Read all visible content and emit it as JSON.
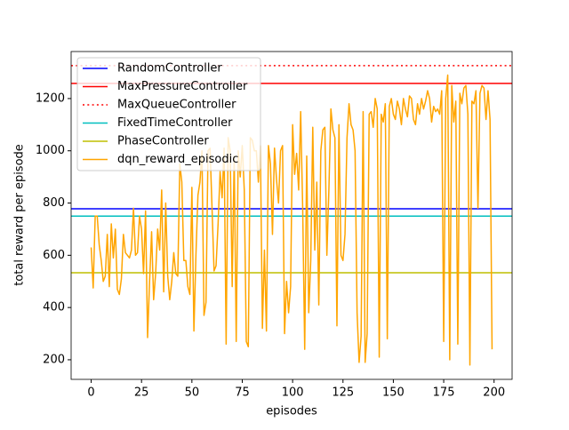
{
  "chart_data": {
    "type": "line",
    "xlabel": "episodes",
    "ylabel": "total reward per episode",
    "xlim": [
      -9.95,
      208.95
    ],
    "ylim": [
      125,
      1380
    ],
    "xticks": [
      0,
      25,
      50,
      75,
      100,
      125,
      150,
      175,
      200
    ],
    "yticks": [
      200,
      400,
      600,
      800,
      1000,
      1200
    ],
    "legend": "upper left",
    "hlines": [
      {
        "name": "RandomController",
        "color": "#0000ff",
        "style": "solid",
        "value": 778
      },
      {
        "name": "MaxPressureController",
        "color": "#ff0000",
        "style": "solid",
        "value": 1258
      },
      {
        "name": "MaxQueueController",
        "color": "#ff0000",
        "style": "dotted",
        "value": 1326
      },
      {
        "name": "FixedTimeController",
        "color": "#00bfbf",
        "style": "solid",
        "value": 750
      },
      {
        "name": "PhaseController",
        "color": "#bfbf00",
        "style": "solid",
        "value": 533
      }
    ],
    "x": [
      0,
      1,
      2,
      3,
      4,
      5,
      6,
      7,
      8,
      9,
      10,
      11,
      12,
      13,
      14,
      15,
      16,
      17,
      18,
      19,
      20,
      21,
      22,
      23,
      24,
      25,
      26,
      27,
      28,
      29,
      30,
      31,
      32,
      33,
      34,
      35,
      36,
      37,
      38,
      39,
      40,
      41,
      42,
      43,
      44,
      45,
      46,
      47,
      48,
      49,
      50,
      51,
      52,
      53,
      54,
      55,
      56,
      57,
      58,
      59,
      60,
      61,
      62,
      63,
      64,
      65,
      66,
      67,
      68,
      69,
      70,
      71,
      72,
      73,
      74,
      75,
      76,
      77,
      78,
      79,
      80,
      81,
      82,
      83,
      84,
      85,
      86,
      87,
      88,
      89,
      90,
      91,
      92,
      93,
      94,
      95,
      96,
      97,
      98,
      99,
      100,
      101,
      102,
      103,
      104,
      105,
      106,
      107,
      108,
      109,
      110,
      111,
      112,
      113,
      114,
      115,
      116,
      117,
      118,
      119,
      120,
      121,
      122,
      123,
      124,
      125,
      126,
      127,
      128,
      129,
      130,
      131,
      132,
      133,
      134,
      135,
      136,
      137,
      138,
      139,
      140,
      141,
      142,
      143,
      144,
      145,
      146,
      147,
      148,
      149,
      150,
      151,
      152,
      153,
      154,
      155,
      156,
      157,
      158,
      159,
      160,
      161,
      162,
      163,
      164,
      165,
      166,
      167,
      168,
      169,
      170,
      171,
      172,
      173,
      174,
      175,
      176,
      177,
      178,
      179,
      180,
      181,
      182,
      183,
      184,
      185,
      186,
      187,
      188,
      189,
      190,
      191,
      192,
      193,
      194,
      195,
      196,
      197,
      198,
      199
    ],
    "series": [
      {
        "name": "dqn_reward_episodic",
        "color": "#ffa500",
        "values": [
          630,
          475,
          750,
          750,
          640,
          580,
          500,
          520,
          680,
          480,
          720,
          590,
          700,
          470,
          450,
          510,
          680,
          610,
          600,
          590,
          620,
          780,
          600,
          610,
          750,
          700,
          530,
          770,
          285,
          500,
          690,
          430,
          530,
          700,
          620,
          850,
          460,
          800,
          520,
          430,
          500,
          610,
          530,
          520,
          950,
          880,
          580,
          580,
          480,
          450,
          860,
          310,
          600,
          830,
          880,
          1000,
          370,
          420,
          1000,
          1010,
          780,
          540,
          560,
          720,
          920,
          820,
          1010,
          260,
          1050,
          1000,
          480,
          980,
          270,
          1000,
          900,
          1020,
          850,
          270,
          250,
          1050,
          1040,
          1000,
          1000,
          880,
          1020,
          320,
          620,
          310,
          1020,
          950,
          680,
          1010,
          890,
          800,
          1000,
          1020,
          300,
          500,
          380,
          480,
          1100,
          910,
          990,
          850,
          1150,
          780,
          240,
          980,
          380,
          580,
          1090,
          620,
          880,
          410,
          1000,
          1080,
          1090,
          600,
          850,
          1160,
          1080,
          1050,
          330,
          1100,
          600,
          580,
          680,
          1050,
          1180,
          1100,
          1080,
          1000,
          380,
          190,
          290,
          1150,
          190,
          300,
          1140,
          1150,
          1090,
          1200,
          1160,
          210,
          1140,
          1110,
          1180,
          280,
          1170,
          1200,
          1140,
          1120,
          1190,
          1160,
          1100,
          1200,
          1160,
          1130,
          1210,
          1200,
          1120,
          1100,
          1180,
          1140,
          1200,
          1160,
          1190,
          1230,
          1200,
          1110,
          1170,
          1150,
          1160,
          1140,
          1230,
          270,
          1200,
          1290,
          200,
          1250,
          1110,
          1190,
          260,
          1220,
          1180,
          1240,
          1250,
          1140,
          180,
          1190,
          1180,
          1230,
          780,
          1220,
          1250,
          1240,
          1120,
          1230,
          1120,
          240
        ]
      }
    ]
  }
}
